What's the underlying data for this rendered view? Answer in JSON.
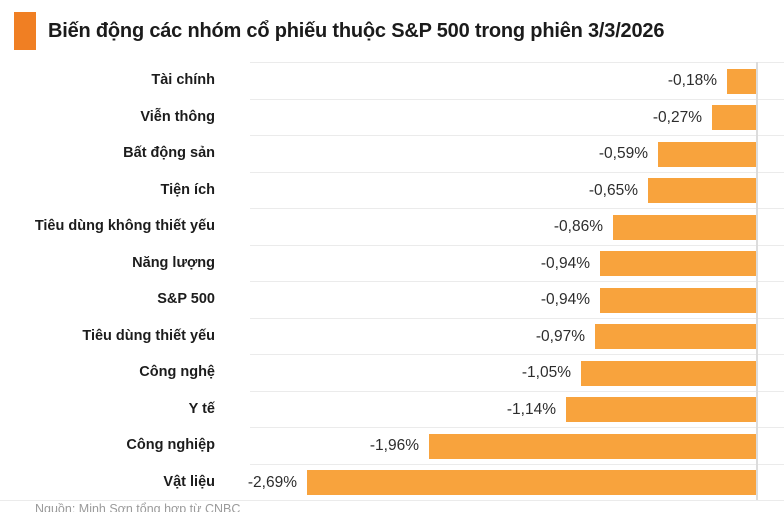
{
  "title": {
    "text": "Biến động các nhóm cổ phiếu thuộc S&P 500 trong phiên 3/3/2026"
  },
  "chart_data": {
    "type": "bar",
    "orientation": "horizontal",
    "unit": "%",
    "title": "Biến động các nhóm cổ phiếu thuộc S&P 500 trong phiên 3/3/2026",
    "categories": [
      "Tài chính",
      "Viễn thông",
      "Bất động sản",
      "Tiện ích",
      "Tiêu dùng không thiết yếu",
      "Năng lượng",
      "S&P 500",
      "Tiêu dùng thiết yếu",
      "Công nghệ",
      "Y tế",
      "Công nghiệp",
      "Vật liệu"
    ],
    "values": [
      -0.18,
      -0.27,
      -0.59,
      -0.65,
      -0.86,
      -0.94,
      -0.94,
      -0.97,
      -1.05,
      -1.14,
      -1.96,
      -2.69
    ],
    "value_labels": [
      "-0,18%",
      "-0,27%",
      "-0,59%",
      "-0,65%",
      "-0,86%",
      "-0,94%",
      "-0,94%",
      "-0,97%",
      "-1,05%",
      "-1,14%",
      "-1,96%",
      "-2,69%"
    ],
    "xlim": [
      -2.69,
      0
    ],
    "bars_aligned": "right",
    "value_label_position": "left-of-bar",
    "grid": "row-separators",
    "bar_color": "#F8A33D",
    "accent_color": "#F07F23",
    "separator_color": "#ebebeb",
    "axis_line_color": "#dcdcdc",
    "title_color": "#1b1b1b",
    "label_color": "#1c1c1c",
    "value_color": "#2d2d2d"
  },
  "footer": {
    "source": "Nguồn: Minh Sơn tổng hợp từ CNBC"
  }
}
